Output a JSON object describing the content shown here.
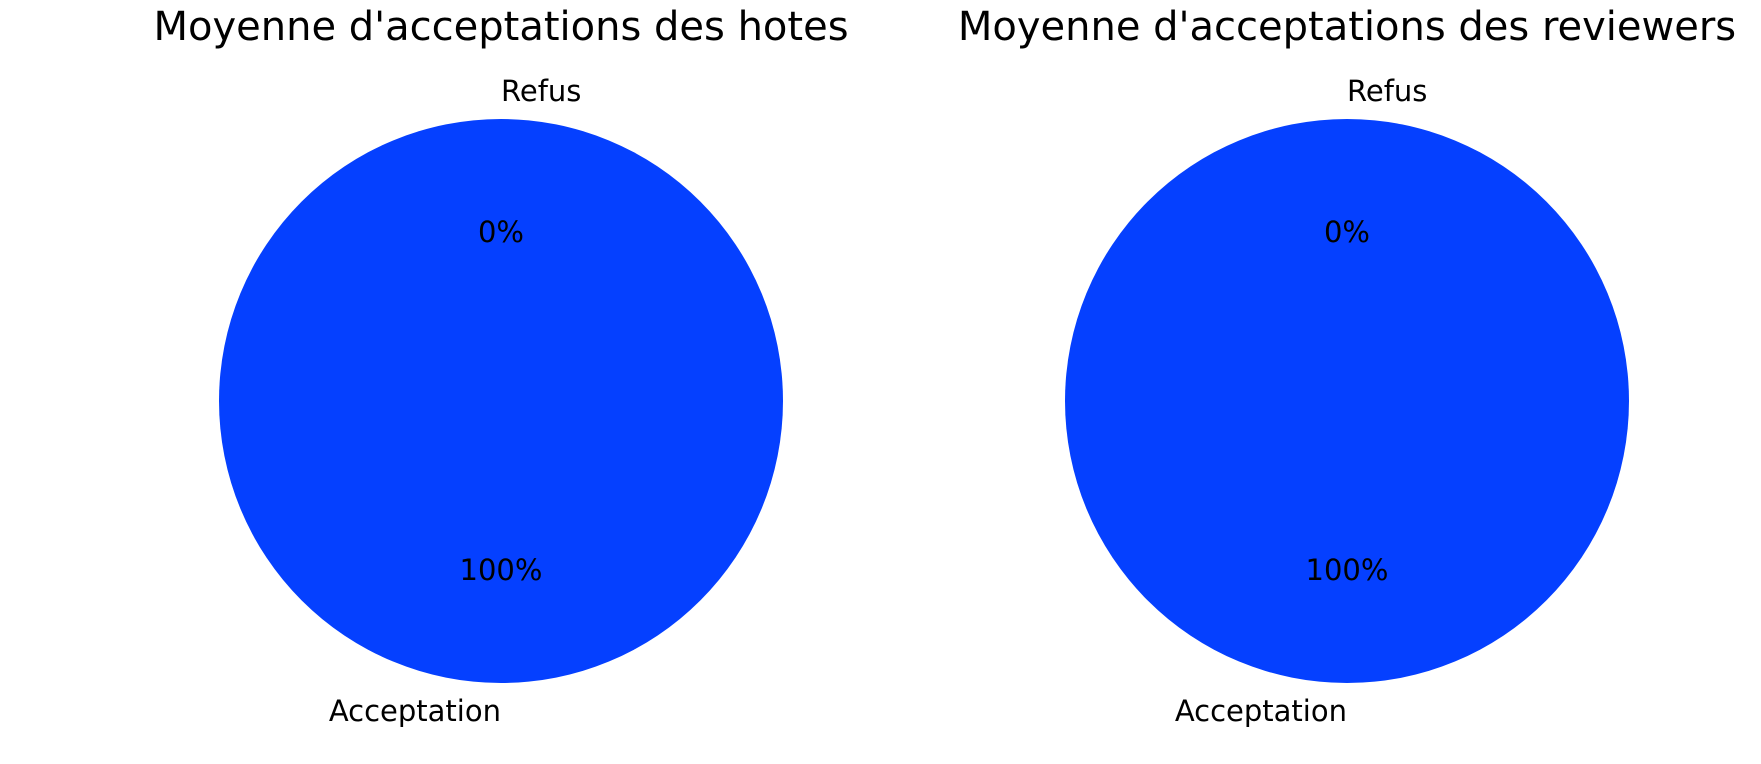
{
  "chart_data": [
    {
      "type": "pie",
      "title": "Moyenne d'acceptations des hotes",
      "labels": [
        "Acceptation",
        "Refus"
      ],
      "values": [
        100,
        0
      ],
      "autopct": [
        "100%",
        "0%"
      ],
      "colors": [
        "#0540ff",
        "#0540ff"
      ],
      "startangle": 90,
      "legend": "none"
    },
    {
      "type": "pie",
      "title": "Moyenne d'acceptations des reviewers",
      "labels": [
        "Acceptation",
        "Refus"
      ],
      "values": [
        100,
        0
      ],
      "autopct": [
        "100%",
        "0%"
      ],
      "colors": [
        "#0540ff",
        "#0540ff"
      ],
      "startangle": 90,
      "legend": "none"
    }
  ]
}
